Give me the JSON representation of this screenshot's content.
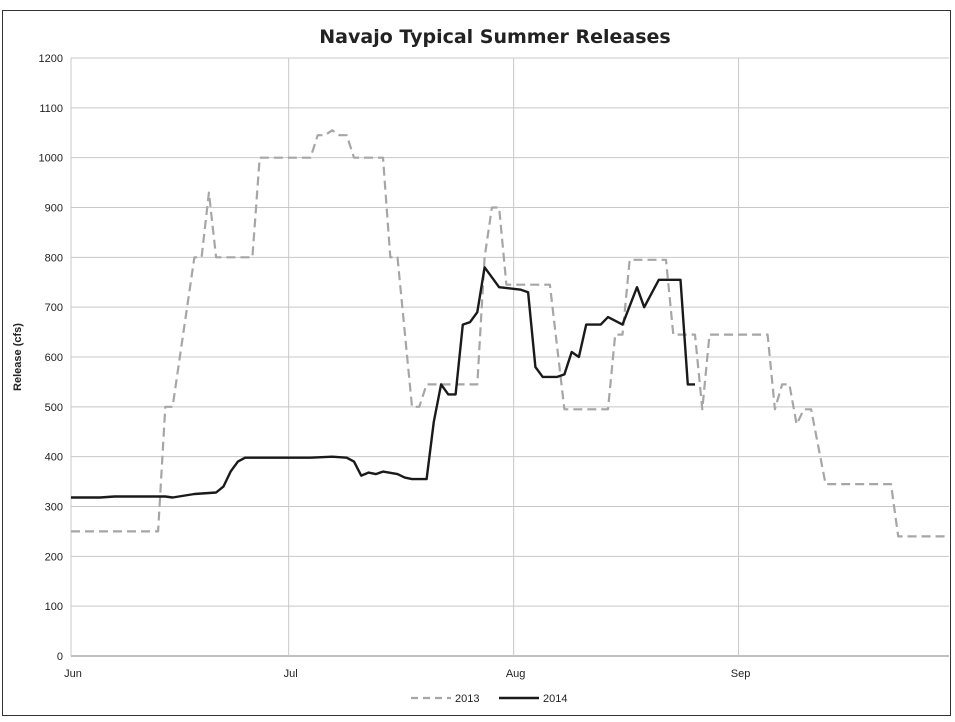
{
  "chart_data": {
    "type": "line",
    "title": "Navajo Typical Summer Releases",
    "xlabel": "",
    "ylabel": "Release (cfs)",
    "ylim": [
      0,
      1200
    ],
    "y_ticks": [
      0,
      100,
      200,
      300,
      400,
      500,
      600,
      700,
      800,
      900,
      1000,
      1100,
      1200
    ],
    "x_ticks": [
      {
        "label": "Jun",
        "date": "06-01"
      },
      {
        "label": "Jul",
        "date": "07-01"
      },
      {
        "label": "Aug",
        "date": "08-01"
      },
      {
        "label": "Sep",
        "date": "09-01"
      }
    ],
    "xlim": [
      "06-01",
      "09-30"
    ],
    "grid": true,
    "legend_position": "bottom",
    "series": [
      {
        "name": "2013",
        "color": "#a6a6a6",
        "style": "dashed",
        "points": [
          [
            "06-01",
            250
          ],
          [
            "06-13",
            250
          ],
          [
            "06-14",
            500
          ],
          [
            "06-15",
            500
          ],
          [
            "06-17",
            700
          ],
          [
            "06-18",
            800
          ],
          [
            "06-19",
            800
          ],
          [
            "06-20",
            930
          ],
          [
            "06-21",
            800
          ],
          [
            "06-26",
            800
          ],
          [
            "06-27",
            1000
          ],
          [
            "07-04",
            1000
          ],
          [
            "07-05",
            1045
          ],
          [
            "07-06",
            1045
          ],
          [
            "07-07",
            1055
          ],
          [
            "07-08",
            1045
          ],
          [
            "07-09",
            1045
          ],
          [
            "07-10",
            1000
          ],
          [
            "07-14",
            1000
          ],
          [
            "07-15",
            800
          ],
          [
            "07-16",
            800
          ],
          [
            "07-18",
            500
          ],
          [
            "07-19",
            500
          ],
          [
            "07-20",
            545
          ],
          [
            "07-27",
            545
          ],
          [
            "07-28",
            800
          ],
          [
            "07-29",
            900
          ],
          [
            "07-30",
            900
          ],
          [
            "07-31",
            745
          ],
          [
            "08-06",
            745
          ],
          [
            "08-08",
            495
          ],
          [
            "08-14",
            495
          ],
          [
            "08-15",
            645
          ],
          [
            "08-16",
            645
          ],
          [
            "08-17",
            795
          ],
          [
            "08-22",
            795
          ],
          [
            "08-23",
            645
          ],
          [
            "08-26",
            645
          ],
          [
            "08-27",
            495
          ],
          [
            "08-28",
            645
          ],
          [
            "09-05",
            645
          ],
          [
            "09-06",
            495
          ],
          [
            "09-07",
            545
          ],
          [
            "09-08",
            545
          ],
          [
            "09-09",
            465
          ],
          [
            "09-10",
            495
          ],
          [
            "09-11",
            495
          ],
          [
            "09-13",
            345
          ],
          [
            "09-22",
            345
          ],
          [
            "09-23",
            240
          ],
          [
            "09-30",
            240
          ]
        ]
      },
      {
        "name": "2014",
        "color": "#1a1a1a",
        "style": "solid",
        "points": [
          [
            "06-01",
            318
          ],
          [
            "06-05",
            318
          ],
          [
            "06-07",
            320
          ],
          [
            "06-14",
            320
          ],
          [
            "06-15",
            318
          ],
          [
            "06-18",
            325
          ],
          [
            "06-21",
            328
          ],
          [
            "06-22",
            340
          ],
          [
            "06-23",
            370
          ],
          [
            "06-24",
            390
          ],
          [
            "06-25",
            398
          ],
          [
            "07-04",
            398
          ],
          [
            "07-07",
            400
          ],
          [
            "07-09",
            398
          ],
          [
            "07-10",
            390
          ],
          [
            "07-11",
            362
          ],
          [
            "07-12",
            368
          ],
          [
            "07-13",
            365
          ],
          [
            "07-14",
            370
          ],
          [
            "07-16",
            365
          ],
          [
            "07-17",
            358
          ],
          [
            "07-18",
            355
          ],
          [
            "07-20",
            355
          ],
          [
            "07-21",
            470
          ],
          [
            "07-22",
            545
          ],
          [
            "07-23",
            525
          ],
          [
            "07-24",
            525
          ],
          [
            "07-25",
            665
          ],
          [
            "07-26",
            670
          ],
          [
            "07-27",
            690
          ],
          [
            "07-28",
            780
          ],
          [
            "07-29",
            760
          ],
          [
            "07-30",
            740
          ],
          [
            "08-02",
            735
          ],
          [
            "08-03",
            730
          ],
          [
            "08-04",
            580
          ],
          [
            "08-05",
            560
          ],
          [
            "08-07",
            560
          ],
          [
            "08-08",
            565
          ],
          [
            "08-09",
            610
          ],
          [
            "08-10",
            600
          ],
          [
            "08-11",
            665
          ],
          [
            "08-13",
            665
          ],
          [
            "08-14",
            680
          ],
          [
            "08-16",
            665
          ],
          [
            "08-18",
            740
          ],
          [
            "08-19",
            700
          ],
          [
            "08-21",
            755
          ],
          [
            "08-24",
            755
          ],
          [
            "08-25",
            545
          ],
          [
            "08-26",
            545
          ]
        ]
      }
    ]
  }
}
